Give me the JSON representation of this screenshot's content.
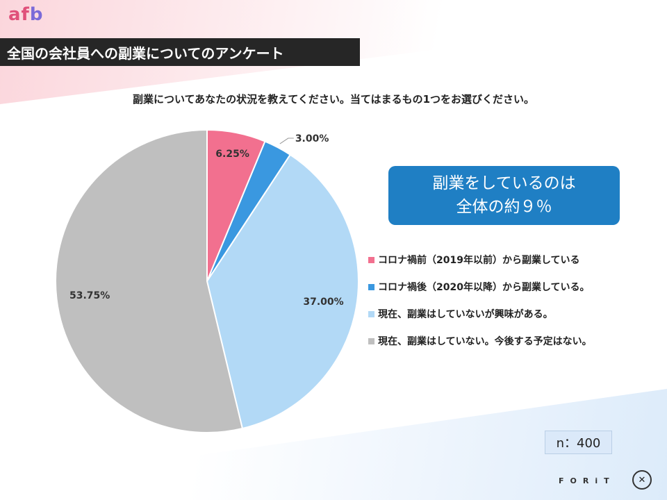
{
  "brand": {
    "logo_a": "af",
    "logo_b": "b",
    "footer_logo": "FORiT"
  },
  "header": {
    "title": "全国の会社員への副業についてのアンケート"
  },
  "question": "副業についてあなたの状況を教えてください。当てはまるもの1つをお選びください。",
  "callout": {
    "line1": "副業をしているのは",
    "line2": "全体の約９％"
  },
  "sample": "n：400",
  "chart_data": {
    "type": "pie",
    "title": "",
    "slices": [
      {
        "label": "コロナ禍前（2019年以前）から副業している",
        "value": 6.25,
        "display": "6.25%",
        "color": "#f2708f"
      },
      {
        "label": "コロナ禍後（2020年以降）から副業している。",
        "value": 3.0,
        "display": "3.00%",
        "color": "#3a98e0"
      },
      {
        "label": "現在、副業はしていないが興味がある。",
        "value": 37.0,
        "display": "37.00%",
        "color": "#b2d9f6"
      },
      {
        "label": "現在、副業はしていない。今後する予定はない。",
        "value": 53.75,
        "display": "53.75%",
        "color": "#bfbfbf"
      }
    ],
    "legend": "right"
  }
}
